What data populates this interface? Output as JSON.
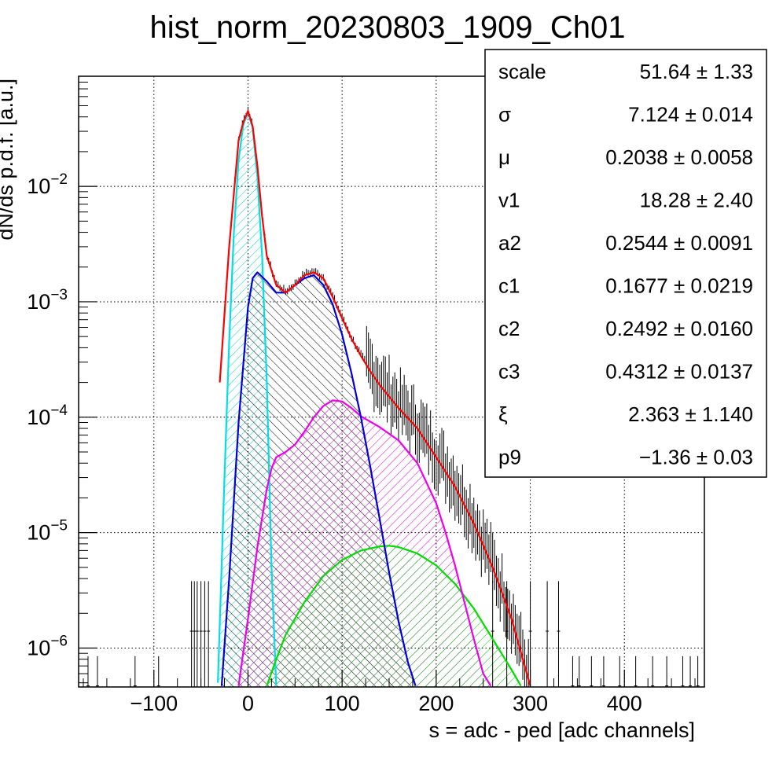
{
  "chart_data": {
    "type": "line",
    "title": "hist_norm_20230803_1909_Ch01",
    "xlabel": "s = adc - ped [adc channels]",
    "ylabel": "dN/ds p.d.f. [a.u.]",
    "xlim": [
      -180,
      485
    ],
    "ylim": [
      4.6e-07,
      0.09
    ],
    "yscale": "log",
    "grid": true,
    "x_ticks": [
      -100,
      0,
      100,
      200,
      300,
      400
    ],
    "x_tick_labels": [
      "−100",
      "0",
      "100",
      "200",
      "300",
      "400"
    ],
    "y_ticks": [
      {
        "value": 1e-06,
        "base": "10",
        "exp": "−6"
      },
      {
        "value": 1e-05,
        "base": "10",
        "exp": "−5"
      },
      {
        "value": 0.0001,
        "base": "10",
        "exp": "−4"
      },
      {
        "value": 0.001,
        "base": "10",
        "exp": "−3"
      },
      {
        "value": 0.01,
        "base": "10",
        "exp": "−2"
      }
    ],
    "series": [
      {
        "color": "#ff0000",
        "role": "total fit",
        "x": [
          -30,
          -20,
          -10,
          -5,
          0,
          5,
          10,
          15,
          20,
          30,
          40,
          50,
          60,
          70,
          80,
          90,
          100,
          110,
          120,
          130,
          140,
          160,
          180,
          200,
          220,
          240,
          260,
          280,
          300
        ],
        "y": [
          0.0002,
          0.003,
          0.025,
          0.036,
          0.045,
          0.033,
          0.015,
          0.0055,
          0.0025,
          0.0014,
          0.0012,
          0.0014,
          0.0017,
          0.0018,
          0.0016,
          0.0011,
          0.00072,
          0.00048,
          0.00034,
          0.00025,
          0.00019,
          0.00012,
          8e-05,
          4.5e-05,
          2.5e-05,
          1.2e-05,
          5e-06,
          1.8e-06,
          4.7e-07
        ]
      },
      {
        "color": "#00e0e0",
        "role": "pedestal",
        "x": [
          -32,
          -25,
          -20,
          -15,
          -10,
          -5,
          0,
          5,
          10,
          15,
          20,
          25,
          30
        ],
        "y": [
          5e-07,
          3e-05,
          0.00045,
          0.004,
          0.017,
          0.034,
          0.044,
          0.032,
          0.012,
          0.0025,
          0.0002,
          5e-06,
          4.7e-07
        ]
      },
      {
        "color": "#0000dd",
        "role": "1 p.e.",
        "x": [
          -28,
          -20,
          -10,
          0,
          5,
          10,
          20,
          30,
          40,
          50,
          60,
          70,
          80,
          90,
          100,
          110,
          120,
          130,
          140,
          150,
          160,
          170,
          178
        ],
        "y": [
          4.7e-07,
          4e-06,
          9e-05,
          0.0009,
          0.0016,
          0.0018,
          0.0015,
          0.0012,
          0.0012,
          0.0014,
          0.0016,
          0.0017,
          0.0014,
          0.00095,
          0.00052,
          0.00024,
          0.0001,
          3.7e-05,
          1.3e-05,
          4.5e-06,
          1.7e-06,
          7.5e-07,
          4.7e-07
        ]
      },
      {
        "color": "#ee00ee",
        "role": "2 p.e.",
        "x": [
          -10,
          0,
          10,
          20,
          25,
          30,
          40,
          50,
          60,
          70,
          80,
          90,
          100,
          110,
          120,
          140,
          160,
          180,
          200,
          210,
          220,
          230,
          240,
          250,
          258
        ],
        "y": [
          4.7e-07,
          1.8e-06,
          7.5e-06,
          2.4e-05,
          3.6e-05,
          4.5e-05,
          5e-05,
          5.8e-05,
          7.5e-05,
          0.0001,
          0.000125,
          0.00014,
          0.000137,
          0.00012,
          0.000102,
          8.2e-05,
          6.3e-05,
          4e-05,
          1.8e-05,
          1e-05,
          5.2e-06,
          2.5e-06,
          1.2e-06,
          6e-07,
          4.7e-07
        ]
      },
      {
        "color": "#00dd00",
        "role": "3 p.e.",
        "x": [
          20,
          30,
          40,
          60,
          80,
          100,
          120,
          140,
          150,
          160,
          180,
          200,
          220,
          240,
          260,
          280,
          290
        ],
        "y": [
          4.7e-07,
          8e-07,
          1.3e-06,
          2.5e-06,
          4.2e-06,
          5.8e-06,
          7e-06,
          7.6e-06,
          7.7e-06,
          7.5e-06,
          6.6e-06,
          5.2e-06,
          3.6e-06,
          2.2e-06,
          1.2e-06,
          6.5e-07,
          4.7e-07
        ]
      }
    ]
  },
  "stats": [
    {
      "name": "scale",
      "value": "51.64 ± 1.33"
    },
    {
      "name": "σ",
      "value": "7.124 ± 0.014"
    },
    {
      "name": "μ",
      "value": "0.2038 ± 0.0058"
    },
    {
      "name": "v1",
      "value": "18.28 ± 2.40"
    },
    {
      "name": "a2",
      "value": "0.2544 ± 0.0091"
    },
    {
      "name": "c1",
      "value": "0.1677 ± 0.0219"
    },
    {
      "name": "c2",
      "value": "0.2492 ± 0.0160"
    },
    {
      "name": "c3",
      "value": "0.4312 ± 0.0137"
    },
    {
      "name": "ξ",
      "value": "2.363 ± 1.140"
    },
    {
      "name": "p9",
      "value": "−1.36 ± 0.03"
    }
  ]
}
